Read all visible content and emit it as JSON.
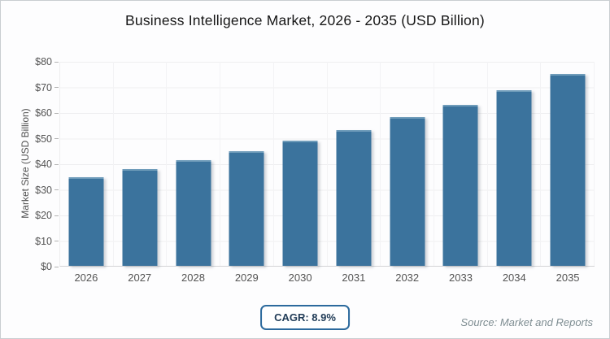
{
  "title": "Business Intelligence Market, 2026 - 2035 (USD Billion)",
  "chart_data": {
    "type": "bar",
    "title": "Business Intelligence Market, 2026 - 2035 (USD Billion)",
    "categories": [
      "2026",
      "2027",
      "2028",
      "2029",
      "2030",
      "2031",
      "2032",
      "2033",
      "2034",
      "2035"
    ],
    "values": [
      34.5,
      37.8,
      41.2,
      44.9,
      48.9,
      53.0,
      58.0,
      63.0,
      68.6,
      74.8
    ],
    "series_name": "Market Size",
    "xlabel": "",
    "ylabel": "Market Size (USD Billion)",
    "ylim": [
      0,
      80
    ],
    "y_tick_labels": [
      "$0",
      "$10",
      "$20",
      "$30",
      "$40",
      "$50",
      "$60",
      "$70",
      "$80"
    ],
    "y_tick_step": 10,
    "grid": "horizontal and vertical light gridlines",
    "legend_position": "none",
    "bar_color": "#3b739d",
    "bar_top_edge_color": "#6f9cba"
  },
  "footer": {
    "cagr_label": "CAGR: 8.9%",
    "source": "Source: Market and Reports"
  },
  "colors": {
    "background": "#fdfdfe",
    "card_border": "#c9cdd1",
    "accent_blue": "#2c6a9d",
    "gridline": "#eeeef0",
    "axis_text": "#555555",
    "title_text": "#161616",
    "source_text": "#7e8d92"
  }
}
